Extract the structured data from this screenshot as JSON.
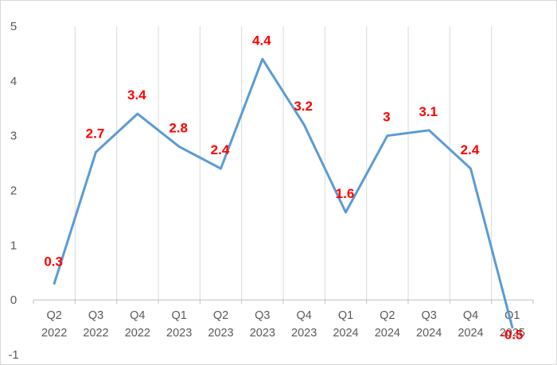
{
  "chart_data": {
    "type": "line",
    "title": "",
    "xlabel": "",
    "ylabel": "",
    "categories": [
      [
        "Q2",
        "2022"
      ],
      [
        "Q3",
        "2022"
      ],
      [
        "Q4",
        "2022"
      ],
      [
        "Q1",
        "2023"
      ],
      [
        "Q2",
        "2023"
      ],
      [
        "Q3",
        "2023"
      ],
      [
        "Q4",
        "2023"
      ],
      [
        "Q1",
        "2024"
      ],
      [
        "Q2",
        "2024"
      ],
      [
        "Q3",
        "2024"
      ],
      [
        "Q4",
        "2024"
      ],
      [
        "Q1",
        "2025"
      ]
    ],
    "series": [
      {
        "values": [
          0.3,
          2.7,
          3.4,
          2.8,
          2.4,
          4.4,
          3.2,
          1.6,
          3,
          3.1,
          2.4,
          -0.5
        ],
        "data_labels": [
          "0.3",
          "2.7",
          "3.4",
          "2.8",
          "2.4",
          "4.4",
          "3.2",
          "1.6",
          "3",
          "3.1",
          "2.4",
          "-0.5"
        ]
      }
    ],
    "ylim": [
      -1,
      5
    ],
    "yticks": [
      5,
      4,
      3,
      2,
      1,
      0,
      -1
    ],
    "grid": "vertical",
    "legend": "none",
    "colors": {
      "line": "#5b9bd5",
      "labels": "#ff0000",
      "grid": "#d9d9d9",
      "axis": "#bfbfbf",
      "text": "#595959"
    }
  }
}
